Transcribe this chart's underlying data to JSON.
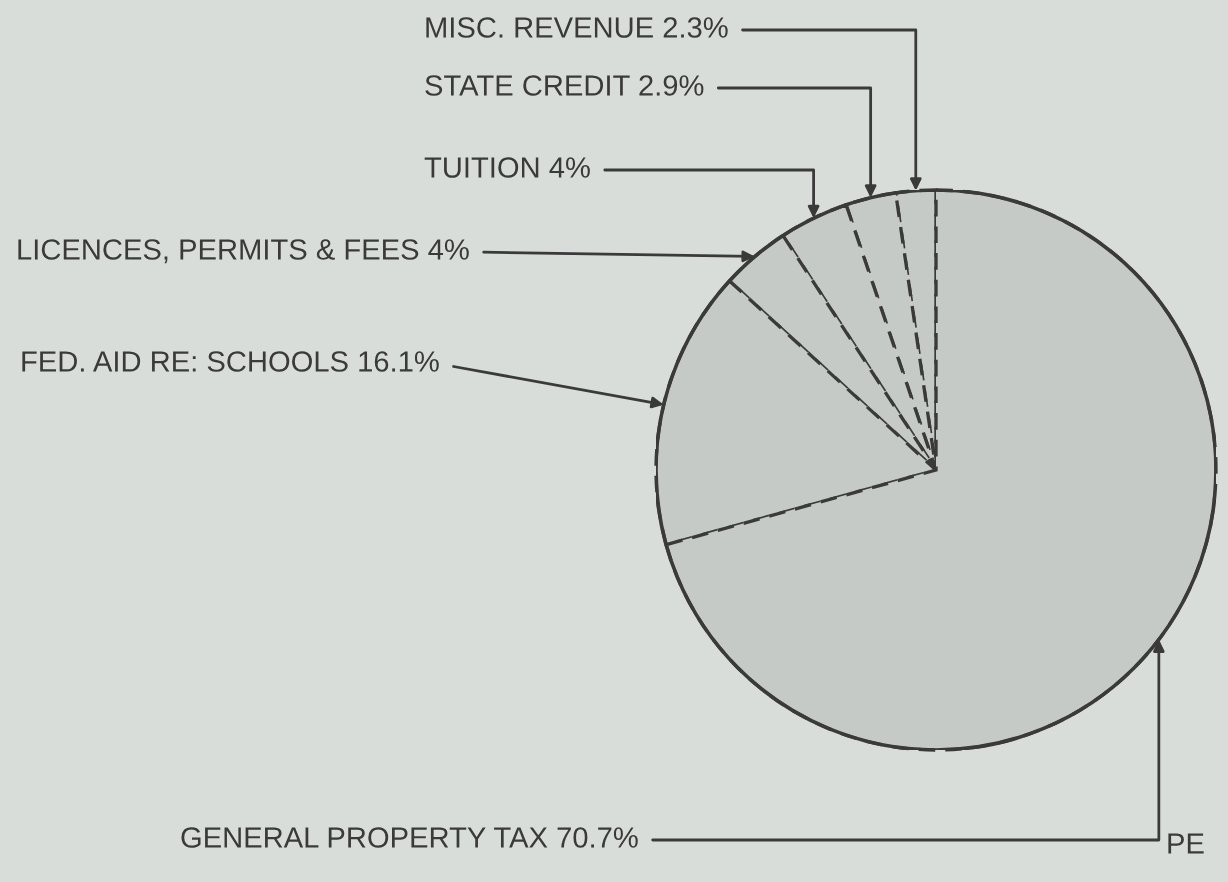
{
  "chart_data": {
    "type": "pie",
    "categories": [
      "MISC. REVENUE",
      "STATE CREDIT",
      "TUITION",
      "LICENCES, PERMITS & FEES",
      "FED. AID RE: SCHOOLS",
      "GENERAL PROPERTY TAX"
    ],
    "values": [
      2.3,
      2.9,
      4,
      4,
      16.1,
      70.7
    ],
    "value_labels": [
      "2.3%",
      "2.9%",
      "4%",
      "4%",
      "16.1%",
      "70.7%"
    ],
    "colors": [
      "#c6cac6",
      "#c6cac6",
      "#c6cac6",
      "#c6cac6",
      "#c6cac6",
      "#c6cac6"
    ],
    "annotations": [
      "PE"
    ]
  }
}
